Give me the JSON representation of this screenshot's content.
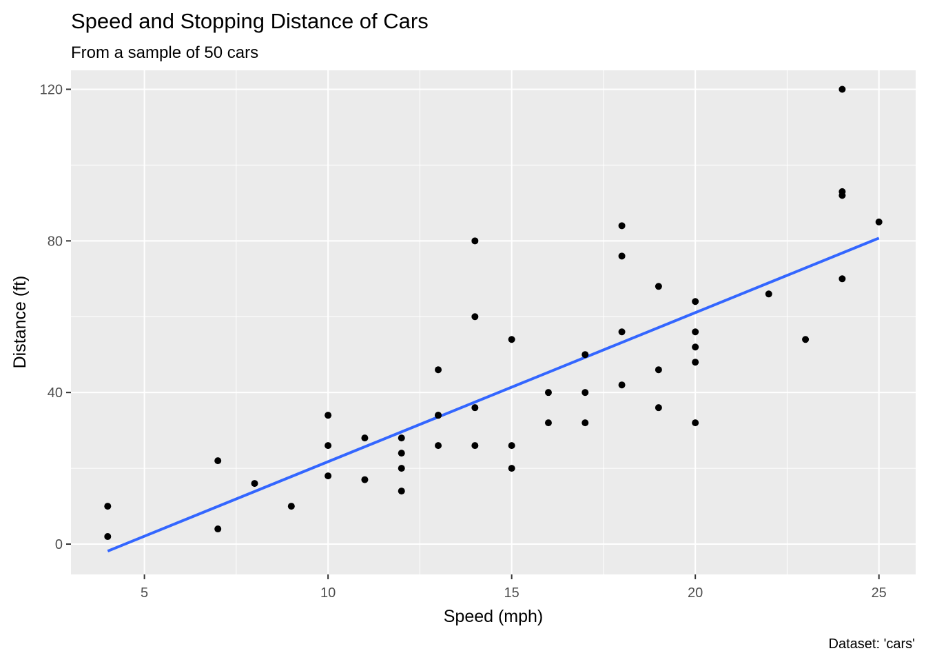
{
  "chart_data": {
    "type": "scatter",
    "title": "Speed and Stopping Distance of Cars",
    "subtitle": "From a sample of 50 cars",
    "xlabel": "Speed (mph)",
    "ylabel": "Distance (ft)",
    "caption": "Dataset: 'cars'",
    "xlim": [
      3,
      26
    ],
    "ylim": [
      -8,
      125
    ],
    "x_ticks": [
      5,
      10,
      15,
      20,
      25
    ],
    "x_tick_labels": [
      "5",
      "10",
      "15",
      "20",
      "25"
    ],
    "y_ticks": [
      0,
      40,
      80,
      120
    ],
    "y_tick_labels": [
      "0",
      "40",
      "80",
      "120"
    ],
    "grid": true,
    "panel_background": "#ebebeb",
    "grid_color": "#ffffff",
    "point_color": "#000000",
    "series": [
      {
        "speed": [
          4,
          4,
          7,
          7,
          8,
          9,
          10,
          10,
          10,
          11,
          11,
          12,
          12,
          12,
          12,
          13,
          13,
          13,
          13,
          14,
          14,
          14,
          14,
          15,
          15,
          15,
          16,
          16,
          17,
          17,
          17,
          18,
          18,
          18,
          18,
          19,
          19,
          19,
          20,
          20,
          20,
          20,
          20,
          22,
          23,
          24,
          24,
          24,
          24,
          25
        ],
        "dist": [
          2,
          10,
          4,
          22,
          16,
          10,
          18,
          26,
          34,
          17,
          28,
          14,
          20,
          24,
          28,
          26,
          34,
          34,
          46,
          26,
          36,
          60,
          80,
          20,
          26,
          54,
          32,
          40,
          32,
          40,
          50,
          42,
          56,
          76,
          84,
          36,
          46,
          68,
          32,
          48,
          52,
          56,
          64,
          66,
          54,
          70,
          92,
          93,
          120,
          85
        ]
      }
    ],
    "fit_line": {
      "method": "lm",
      "color": "#3366ff",
      "x": [
        4,
        25
      ],
      "y": [
        -1.849,
        80.731
      ]
    }
  }
}
